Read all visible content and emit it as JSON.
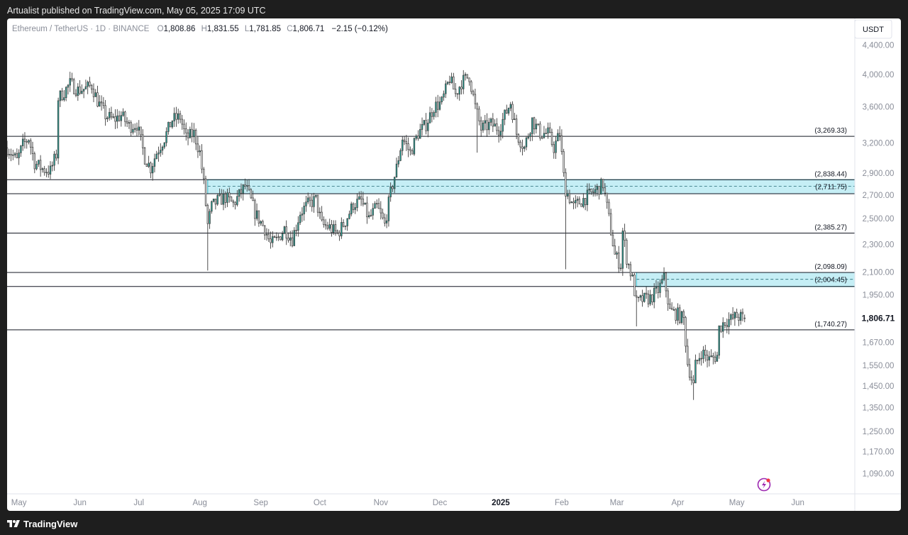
{
  "header": {
    "published": "Artualist published on TradingView.com, May 05, 2025 17:09 UTC"
  },
  "legend": {
    "symbol": "Ethereum / TetherUS · 1D · BINANCE",
    "o_label": "O",
    "o_value": "1,808.86",
    "h_label": "H",
    "h_value": "1,831.55",
    "l_label": "L",
    "l_value": "1,781.85",
    "c_label": "C",
    "c_value": "1,806.71",
    "change": "−2.15 (−0.12%)"
  },
  "currency_badge": "USDT",
  "footer": {
    "brand": "TradingView"
  },
  "colors": {
    "up": "#26a69a",
    "down": "#444444",
    "zone_fill": "#c5eef5",
    "zone_border": "#2bb5c7",
    "level_line": "#131722"
  },
  "icons": {
    "flash": "lightning-icon",
    "brand": "tradingview-logo-icon"
  },
  "chart_data": {
    "type": "candlestick",
    "title": "Ethereum / TetherUS · 1D · BINANCE",
    "yscale": "log",
    "ylim": [
      1020,
      4800
    ],
    "y_ticks": [
      4400,
      4000,
      3600,
      3200,
      2900,
      2700,
      2500,
      2300,
      2100,
      1950,
      1806.71,
      1670,
      1550,
      1450,
      1350,
      1250,
      1170,
      1090
    ],
    "y_tick_labels": [
      "4,400.00",
      "4,000.00",
      "3,600.00",
      "3,200.00",
      "2,900.00",
      "2,700.00",
      "2,500.00",
      "2,300.00",
      "2,100.00",
      "1,950.00",
      "1,806.71",
      "1,670.00",
      "1,550.00",
      "1,450.00",
      "1,350.00",
      "1,250.00",
      "1,170.00",
      "1,090.00"
    ],
    "current_price": 1806.71,
    "x_labels": [
      "May",
      "Jun",
      "Jul",
      "Aug",
      "Sep",
      "Oct",
      "Nov",
      "Dec",
      "2025",
      "Feb",
      "Mar",
      "Apr",
      "May",
      "Jun"
    ],
    "x_label_dates": [
      "2024-05-01",
      "2024-06-01",
      "2024-07-01",
      "2024-08-01",
      "2024-09-01",
      "2024-10-01",
      "2024-11-01",
      "2024-12-01",
      "2025-01-01",
      "2025-02-01",
      "2025-03-01",
      "2025-04-01",
      "2025-05-01",
      "2025-06-01"
    ],
    "x_range": [
      "2024-04-25",
      "2025-06-30"
    ],
    "horizontal_levels": [
      {
        "value": 3269.33,
        "label": "(3,269.33)"
      },
      {
        "value": 2838.44,
        "label": "(2,838.44)"
      },
      {
        "value": 2711.75,
        "label": "(2,711.75)"
      },
      {
        "value": 2385.27,
        "label": "(2,385.27)"
      },
      {
        "value": 2098.09,
        "label": "(2,098.09)"
      },
      {
        "value": 2004.45,
        "label": "(2,004.45)"
      },
      {
        "value": 1740.27,
        "label": "(1,740.27)"
      }
    ],
    "zones": [
      {
        "from": "2024-08-05",
        "top": 2838.44,
        "bottom": 2711.75,
        "mid": 2778
      },
      {
        "from": "2025-03-11",
        "top": 2098.09,
        "bottom": 2004.45,
        "mid": 2052
      }
    ],
    "close_path": [
      [
        "2024-04-25",
        3150
      ],
      [
        "2024-04-30",
        3020
      ],
      [
        "2024-05-03",
        3180
      ],
      [
        "2024-05-06",
        3250
      ],
      [
        "2024-05-09",
        3000
      ],
      [
        "2024-05-13",
        2940
      ],
      [
        "2024-05-17",
        2920
      ],
      [
        "2024-05-20",
        3080
      ],
      [
        "2024-05-21",
        3700
      ],
      [
        "2024-05-24",
        3780
      ],
      [
        "2024-05-27",
        3880
      ],
      [
        "2024-05-31",
        3800
      ],
      [
        "2024-06-04",
        3820
      ],
      [
        "2024-06-07",
        3860
      ],
      [
        "2024-06-10",
        3670
      ],
      [
        "2024-06-14",
        3500
      ],
      [
        "2024-06-18",
        3450
      ],
      [
        "2024-06-22",
        3500
      ],
      [
        "2024-06-26",
        3380
      ],
      [
        "2024-06-30",
        3400
      ],
      [
        "2024-07-04",
        3050
      ],
      [
        "2024-07-07",
        2950
      ],
      [
        "2024-07-10",
        3100
      ],
      [
        "2024-07-14",
        3250
      ],
      [
        "2024-07-18",
        3450
      ],
      [
        "2024-07-22",
        3480
      ],
      [
        "2024-07-25",
        3250
      ],
      [
        "2024-07-29",
        3300
      ],
      [
        "2024-08-01",
        3100
      ],
      [
        "2024-08-03",
        2800
      ],
      [
        "2024-08-05",
        2450
      ],
      [
        "2024-08-07",
        2600
      ],
      [
        "2024-08-10",
        2650
      ],
      [
        "2024-08-14",
        2680
      ],
      [
        "2024-08-18",
        2620
      ],
      [
        "2024-08-21",
        2700
      ],
      [
        "2024-08-24",
        2780
      ],
      [
        "2024-08-26",
        2700
      ],
      [
        "2024-08-29",
        2550
      ],
      [
        "2024-09-03",
        2420
      ],
      [
        "2024-09-06",
        2300
      ],
      [
        "2024-09-09",
        2330
      ],
      [
        "2024-09-13",
        2420
      ],
      [
        "2024-09-17",
        2340
      ],
      [
        "2024-09-21",
        2550
      ],
      [
        "2024-09-25",
        2620
      ],
      [
        "2024-09-29",
        2660
      ],
      [
        "2024-10-02",
        2450
      ],
      [
        "2024-10-06",
        2430
      ],
      [
        "2024-10-10",
        2380
      ],
      [
        "2024-10-14",
        2480
      ],
      [
        "2024-10-18",
        2620
      ],
      [
        "2024-10-22",
        2650
      ],
      [
        "2024-10-26",
        2500
      ],
      [
        "2024-10-30",
        2600
      ],
      [
        "2024-11-03",
        2450
      ],
      [
        "2024-11-06",
        2720
      ],
      [
        "2024-11-09",
        2950
      ],
      [
        "2024-11-12",
        3250
      ],
      [
        "2024-11-16",
        3100
      ],
      [
        "2024-11-20",
        3300
      ],
      [
        "2024-11-24",
        3400
      ],
      [
        "2024-11-28",
        3600
      ],
      [
        "2024-12-02",
        3650
      ],
      [
        "2024-12-06",
        3950
      ],
      [
        "2024-12-09",
        3750
      ],
      [
        "2024-12-12",
        3900
      ],
      [
        "2024-12-16",
        3980
      ],
      [
        "2024-12-19",
        3600
      ],
      [
        "2024-12-22",
        3350
      ],
      [
        "2024-12-27",
        3400
      ],
      [
        "2024-12-31",
        3350
      ],
      [
        "2025-01-06",
        3650
      ],
      [
        "2025-01-09",
        3300
      ],
      [
        "2025-01-13",
        3150
      ],
      [
        "2025-01-17",
        3450
      ],
      [
        "2025-01-21",
        3300
      ],
      [
        "2025-01-25",
        3300
      ],
      [
        "2025-01-28",
        3150
      ],
      [
        "2025-01-31",
        3300
      ],
      [
        "2025-02-02",
        2870
      ],
      [
        "2025-02-03",
        2750
      ],
      [
        "2025-02-07",
        2600
      ],
      [
        "2025-02-11",
        2650
      ],
      [
        "2025-02-15",
        2700
      ],
      [
        "2025-02-19",
        2750
      ],
      [
        "2025-02-22",
        2800
      ],
      [
        "2025-02-25",
        2500
      ],
      [
        "2025-02-28",
        2220
      ],
      [
        "2025-03-03",
        2150
      ],
      [
        "2025-03-04",
        2400
      ],
      [
        "2025-03-06",
        2200
      ],
      [
        "2025-03-09",
        2050
      ],
      [
        "2025-03-11",
        1900
      ],
      [
        "2025-03-14",
        1920
      ],
      [
        "2025-03-18",
        1930
      ],
      [
        "2025-03-22",
        1980
      ],
      [
        "2025-03-25",
        2060
      ],
      [
        "2025-03-28",
        1850
      ],
      [
        "2025-04-01",
        1830
      ],
      [
        "2025-04-04",
        1800
      ],
      [
        "2025-04-06",
        1560
      ],
      [
        "2025-04-09",
        1450
      ],
      [
        "2025-04-10",
        1550
      ],
      [
        "2025-04-13",
        1620
      ],
      [
        "2025-04-17",
        1580
      ],
      [
        "2025-04-21",
        1600
      ],
      [
        "2025-04-22",
        1750
      ],
      [
        "2025-04-25",
        1790
      ],
      [
        "2025-04-28",
        1800
      ],
      [
        "2025-05-01",
        1820
      ],
      [
        "2025-05-05",
        1806.71
      ]
    ],
    "marked_wicks": [
      {
        "date": "2024-08-05",
        "low": 2111
      },
      {
        "date": "2025-02-03",
        "low": 2120
      },
      {
        "date": "2025-04-09",
        "low": 1385
      },
      {
        "date": "2024-12-20",
        "low": 3100
      },
      {
        "date": "2025-03-11",
        "low": 1760
      }
    ]
  }
}
